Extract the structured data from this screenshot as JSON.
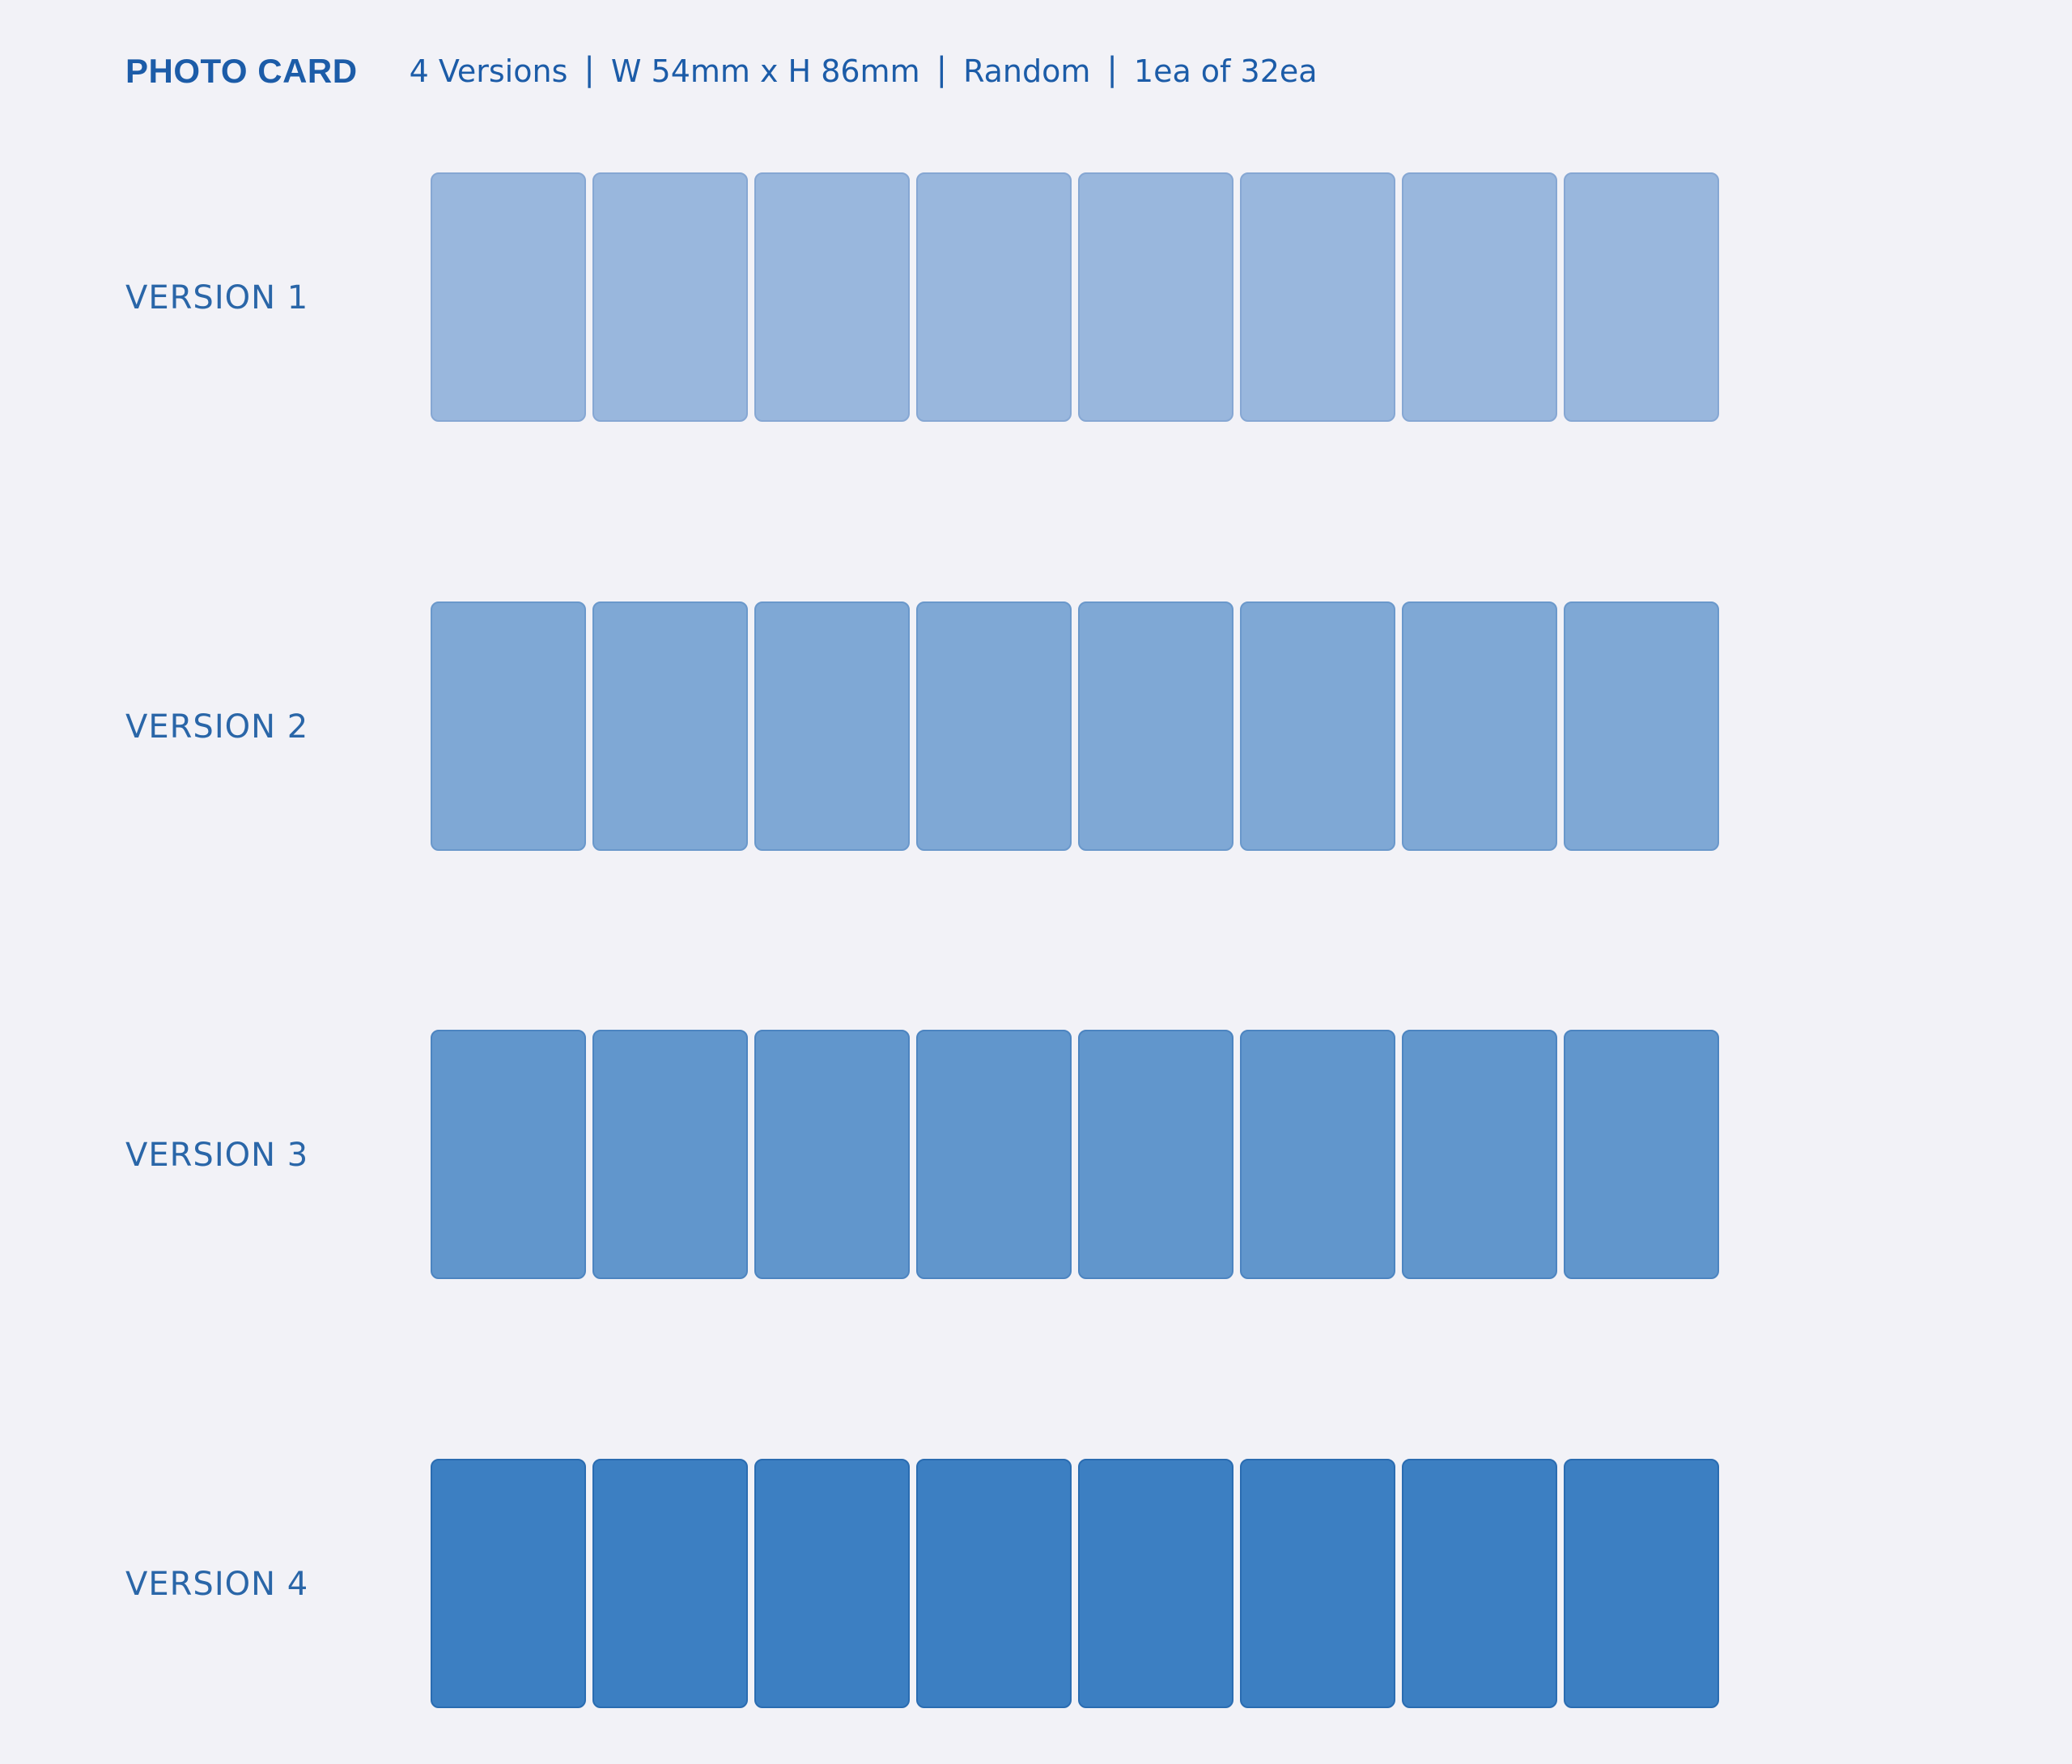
{
  "header": {
    "title": "PHOTO CARD",
    "specs": [
      "4 Versions",
      "W 54mm x H 86mm",
      "Random",
      "1ea of 32ea"
    ],
    "separator": "|"
  },
  "versions": [
    {
      "label": "VERSION 1",
      "card_count": 8,
      "color": "#99b7dd",
      "border": "#86a7d3"
    },
    {
      "label": "VERSION 2",
      "card_count": 8,
      "color": "#7fa8d5",
      "border": "#6a98cb"
    },
    {
      "label": "VERSION 3",
      "card_count": 8,
      "color": "#6196cc",
      "border": "#4c84c0"
    },
    {
      "label": "VERSION 4",
      "card_count": 8,
      "color": "#3c7fc2",
      "border": "#2a6cb1"
    }
  ]
}
